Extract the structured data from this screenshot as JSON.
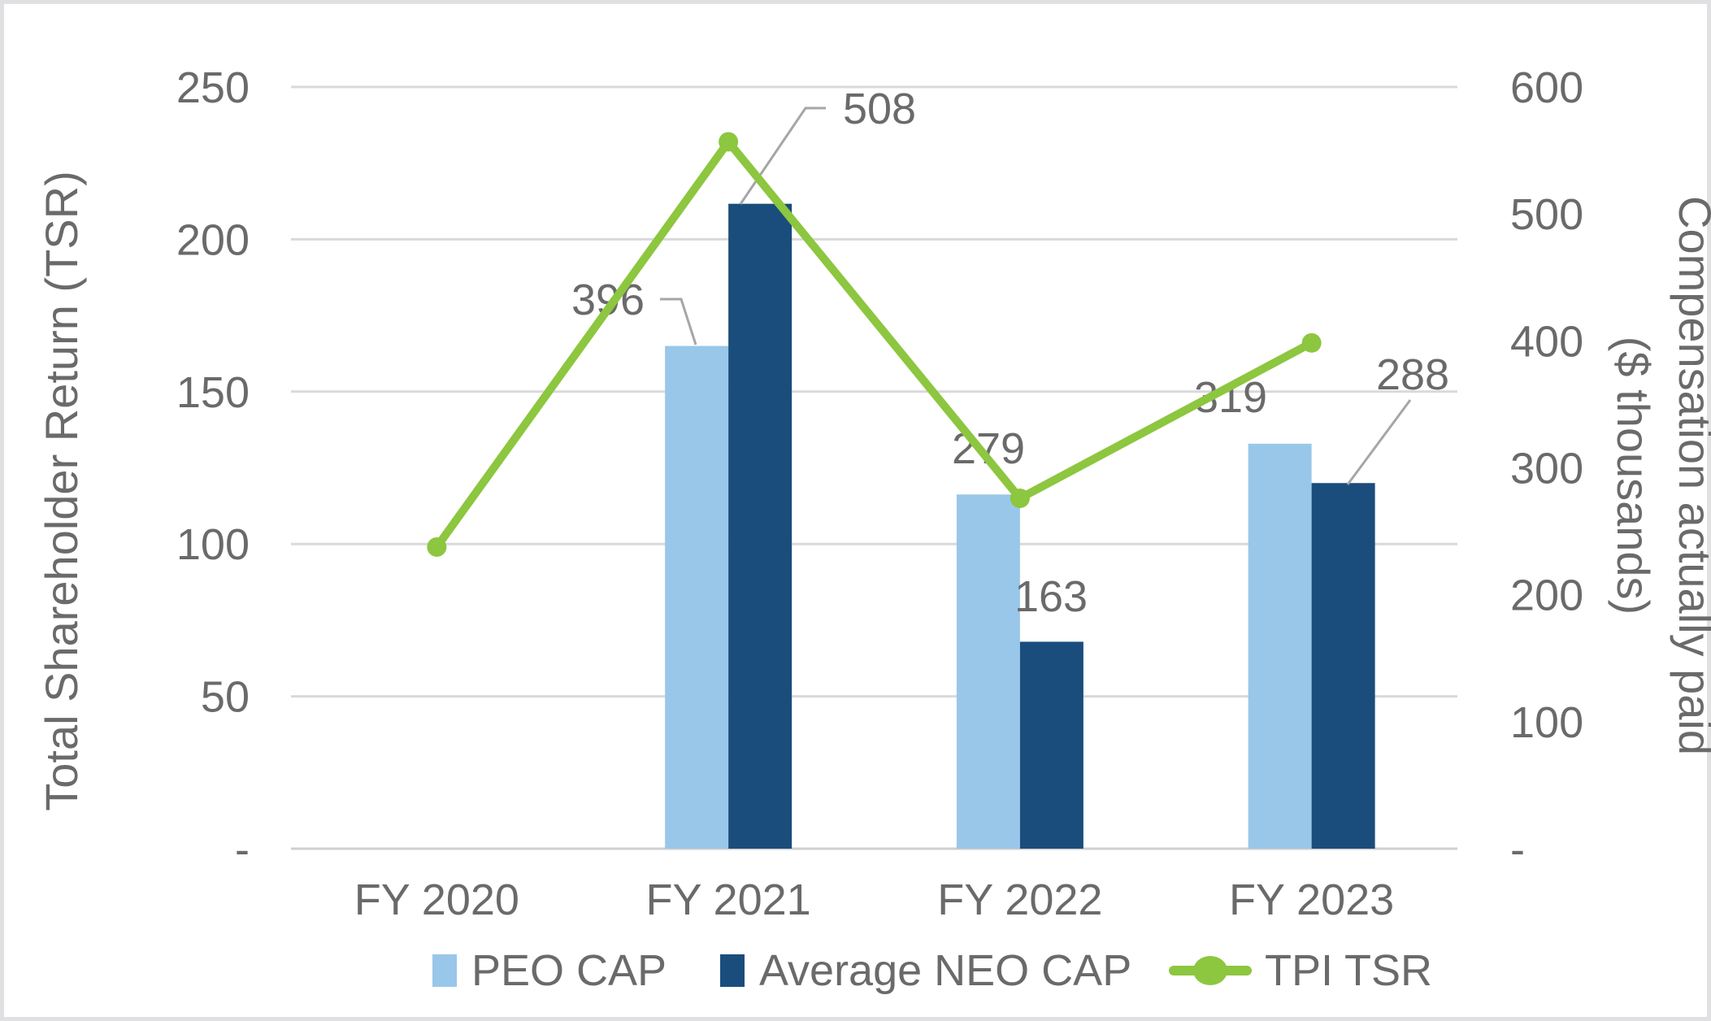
{
  "chart_data": {
    "type": "combo-bar-line",
    "categories": [
      "FY 2020",
      "FY 2021",
      "FY 2022",
      "FY 2023"
    ],
    "series": [
      {
        "name": "PEO CAP",
        "type": "bar",
        "axis": "right",
        "color": "#99C7E9",
        "values": [
          null,
          396,
          279,
          319
        ],
        "data_labels": [
          null,
          "396",
          "279",
          "319"
        ]
      },
      {
        "name": "Average NEO CAP",
        "type": "bar",
        "axis": "right",
        "color": "#1A4D7C",
        "values": [
          null,
          508,
          163,
          288
        ],
        "data_labels": [
          null,
          "508",
          "163",
          "288"
        ]
      },
      {
        "name": "TPI TSR",
        "type": "line",
        "axis": "left",
        "color": "#8DC63F",
        "values": [
          99,
          232,
          115,
          166
        ],
        "data_labels": [
          null,
          null,
          null,
          null
        ]
      }
    ],
    "left_axis": {
      "title": "Total Shareholder Return (TSR)",
      "tick_labels": [
        "250",
        "200",
        "150",
        "100",
        "50",
        "-"
      ],
      "tick_values": [
        250,
        200,
        150,
        100,
        50,
        0
      ],
      "min": 0,
      "max": 250
    },
    "right_axis": {
      "title_line1": "Compensation actually paid",
      "title_line2": "($ thousands)",
      "tick_labels": [
        "600",
        "500",
        "400",
        "300",
        "200",
        "100",
        "-"
      ],
      "tick_values": [
        600,
        500,
        400,
        300,
        200,
        100,
        0
      ],
      "min": 0,
      "max": 600
    },
    "legend": {
      "position": "bottom",
      "entries": [
        "PEO CAP",
        "Average NEO CAP",
        "TPI TSR"
      ]
    },
    "grid": true
  },
  "colors": {
    "background": "#FFFFFF",
    "border": "#E0E0E2",
    "gridline": "#D9D9D9",
    "axis_line": "#CFCFCF",
    "text": "#6A6A6A",
    "leader_line": "#A6A6A6",
    "peo_cap": "#99C7E9",
    "neo_cap": "#1A4D7C",
    "tpi_tsr": "#8DC63F"
  }
}
